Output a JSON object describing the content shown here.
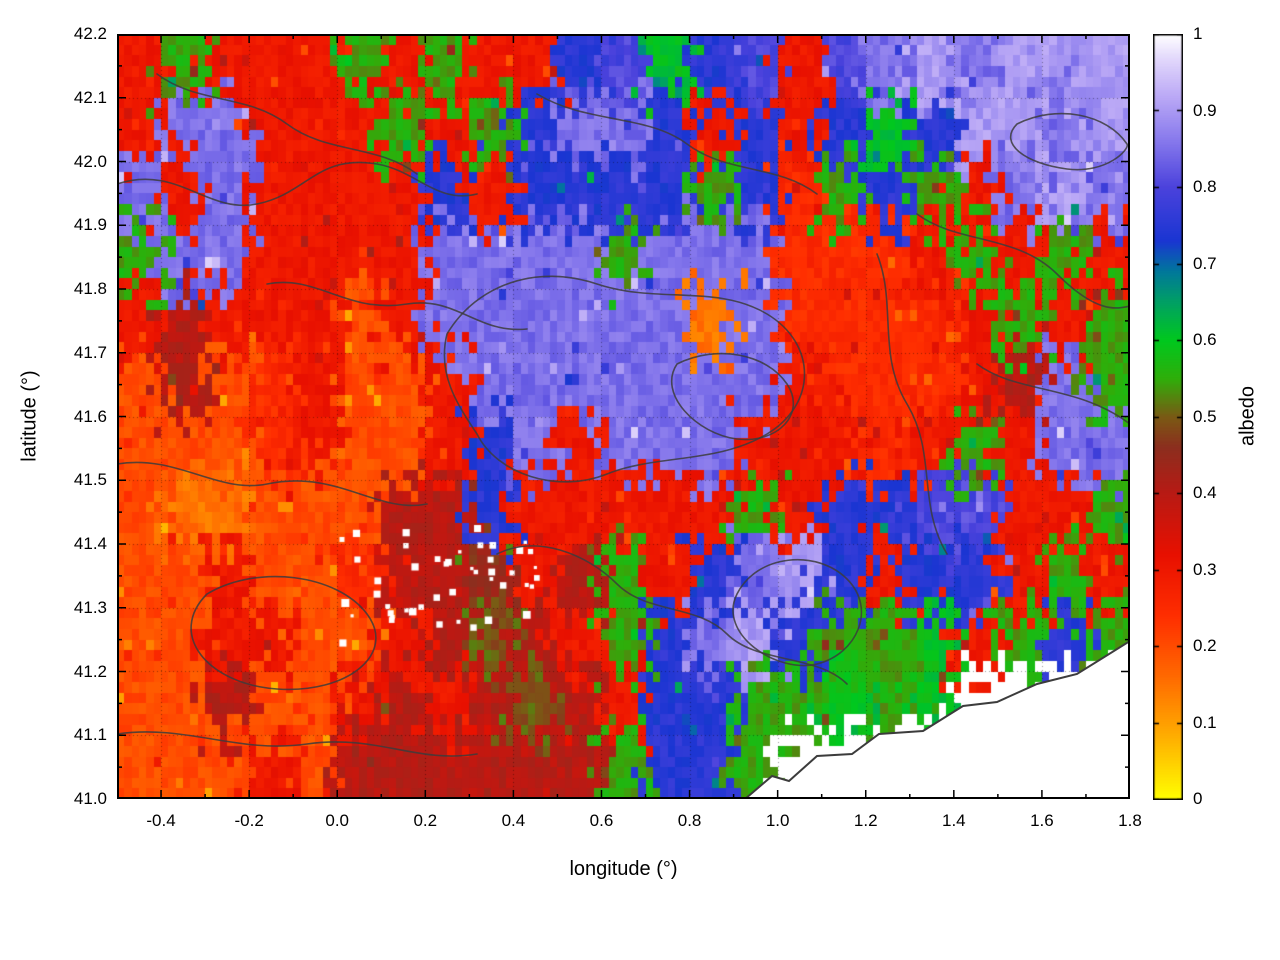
{
  "figure": {
    "background": "#ffffff"
  },
  "axes": {
    "x": {
      "label": "longitude (°)",
      "min": -0.5,
      "max": 1.8,
      "ticks": [
        {
          "v": -0.4,
          "label": "-0.4"
        },
        {
          "v": -0.2,
          "label": "-0.2"
        },
        {
          "v": 0.0,
          "label": "0.0"
        },
        {
          "v": 0.2,
          "label": "0.2"
        },
        {
          "v": 0.4,
          "label": "0.4"
        },
        {
          "v": 0.6,
          "label": "0.6"
        },
        {
          "v": 0.8,
          "label": "0.8"
        },
        {
          "v": 1.0,
          "label": "1.0"
        },
        {
          "v": 1.2,
          "label": "1.2"
        },
        {
          "v": 1.4,
          "label": "1.4"
        },
        {
          "v": 1.6,
          "label": "1.6"
        },
        {
          "v": 1.8,
          "label": "1.8"
        }
      ],
      "minor_step": 0.1
    },
    "y": {
      "label": "latitude (°)",
      "min": 41.0,
      "max": 42.2,
      "ticks": [
        {
          "v": 41.0,
          "label": "41.0"
        },
        {
          "v": 41.1,
          "label": "41.1"
        },
        {
          "v": 41.2,
          "label": "41.2"
        },
        {
          "v": 41.3,
          "label": "41.3"
        },
        {
          "v": 41.4,
          "label": "41.4"
        },
        {
          "v": 41.5,
          "label": "41.5"
        },
        {
          "v": 41.6,
          "label": "41.6"
        },
        {
          "v": 41.7,
          "label": "41.7"
        },
        {
          "v": 41.8,
          "label": "41.8"
        },
        {
          "v": 41.9,
          "label": "41.9"
        },
        {
          "v": 42.0,
          "label": "42.0"
        },
        {
          "v": 42.1,
          "label": "42.1"
        },
        {
          "v": 42.2,
          "label": "42.2"
        }
      ],
      "minor_step": 0.05
    },
    "grid_lines": "dotted at major ticks"
  },
  "colorbar": {
    "label": "albedo",
    "min": 0,
    "max": 1,
    "ticks": [
      {
        "v": 0.0,
        "label": "0"
      },
      {
        "v": 0.1,
        "label": "0.1"
      },
      {
        "v": 0.2,
        "label": "0.2"
      },
      {
        "v": 0.3,
        "label": "0.3"
      },
      {
        "v": 0.4,
        "label": "0.4"
      },
      {
        "v": 0.5,
        "label": "0.5"
      },
      {
        "v": 0.6,
        "label": "0.6"
      },
      {
        "v": 0.7,
        "label": "0.7"
      },
      {
        "v": 0.8,
        "label": "0.8"
      },
      {
        "v": 0.9,
        "label": "0.9"
      },
      {
        "v": 1.0,
        "label": "1"
      }
    ],
    "stops": [
      [
        0.0,
        "#ffff00"
      ],
      [
        0.08,
        "#ffb000"
      ],
      [
        0.16,
        "#ff6a00"
      ],
      [
        0.24,
        "#ff2e00"
      ],
      [
        0.32,
        "#e81000"
      ],
      [
        0.4,
        "#b81a14"
      ],
      [
        0.46,
        "#8c2e1e"
      ],
      [
        0.5,
        "#7a5a14"
      ],
      [
        0.55,
        "#2fae0a"
      ],
      [
        0.6,
        "#00c81e"
      ],
      [
        0.65,
        "#00a064"
      ],
      [
        0.69,
        "#00789b"
      ],
      [
        0.73,
        "#1a35d2"
      ],
      [
        0.8,
        "#4b42dc"
      ],
      [
        0.86,
        "#8678ec"
      ],
      [
        0.92,
        "#bcaaf6"
      ],
      [
        0.97,
        "#e4dafc"
      ],
      [
        1.0,
        "#ffffff"
      ]
    ]
  },
  "chart_data": {
    "type": "heatmap",
    "title": "",
    "xlabel": "longitude (°)",
    "ylabel": "latitude (°)",
    "value_label": "albedo",
    "value_range": [
      0,
      1
    ],
    "x_range": [
      -0.5,
      1.8
    ],
    "y_range": [
      41.0,
      42.2
    ],
    "grid_lon_start": -0.45,
    "grid_lon_step": 0.1,
    "grid_lat_start": 42.15,
    "grid_lat_step": -0.1,
    "no_data_color": "#ffffff",
    "values": [
      [
        0.3,
        0.55,
        0.3,
        0.3,
        0.3,
        0.55,
        0.3,
        0.55,
        0.3,
        0.3,
        0.75,
        0.8,
        0.6,
        0.75,
        0.8,
        0.3,
        0.8,
        0.85,
        0.9,
        0.85,
        0.9,
        0.9,
        0.9
      ],
      [
        0.3,
        0.85,
        0.85,
        0.3,
        0.3,
        0.3,
        0.55,
        0.3,
        0.55,
        0.75,
        0.85,
        0.85,
        0.75,
        0.3,
        0.75,
        0.3,
        0.75,
        0.6,
        0.75,
        0.9,
        0.9,
        0.85,
        0.9
      ],
      [
        0.85,
        0.3,
        0.85,
        0.3,
        0.3,
        0.3,
        0.3,
        0.75,
        0.3,
        0.75,
        0.75,
        0.75,
        0.75,
        0.55,
        0.75,
        0.25,
        0.55,
        0.75,
        0.55,
        0.3,
        0.85,
        0.9,
        0.85
      ],
      [
        0.55,
        0.85,
        0.85,
        0.3,
        0.3,
        0.3,
        0.3,
        0.85,
        0.85,
        0.85,
        0.85,
        0.55,
        0.85,
        0.85,
        0.85,
        0.25,
        0.25,
        0.25,
        0.3,
        0.55,
        0.3,
        0.55,
        0.3
      ],
      [
        0.3,
        0.4,
        0.3,
        0.3,
        0.3,
        0.2,
        0.3,
        0.85,
        0.85,
        0.85,
        0.85,
        0.85,
        0.85,
        0.15,
        0.85,
        0.25,
        0.25,
        0.25,
        0.25,
        0.3,
        0.55,
        0.3,
        0.55
      ],
      [
        0.2,
        0.4,
        0.2,
        0.25,
        0.3,
        0.2,
        0.2,
        0.3,
        0.85,
        0.85,
        0.85,
        0.85,
        0.85,
        0.85,
        0.85,
        0.3,
        0.25,
        0.25,
        0.25,
        0.3,
        0.4,
        0.85,
        0.55
      ],
      [
        0.2,
        0.2,
        0.2,
        0.25,
        0.3,
        0.2,
        0.2,
        0.3,
        0.75,
        0.85,
        0.3,
        0.85,
        0.85,
        0.85,
        0.3,
        0.3,
        0.3,
        0.25,
        0.3,
        0.55,
        0.3,
        0.85,
        0.85
      ],
      [
        0.2,
        0.15,
        0.15,
        0.2,
        0.2,
        0.2,
        0.4,
        0.4,
        0.75,
        0.3,
        0.3,
        0.3,
        0.3,
        0.3,
        0.55,
        0.3,
        0.75,
        0.75,
        0.8,
        0.8,
        0.3,
        0.3,
        0.55
      ],
      [
        0.2,
        0.2,
        0.3,
        0.2,
        0.2,
        0.25,
        0.4,
        0.4,
        0.45,
        0.3,
        0.4,
        0.55,
        0.3,
        0.75,
        0.85,
        0.9,
        0.75,
        0.3,
        0.75,
        0.75,
        0.3,
        0.55,
        0.3
      ],
      [
        0.2,
        0.2,
        0.3,
        0.3,
        0.2,
        0.2,
        0.3,
        0.4,
        0.5,
        0.4,
        0.3,
        0.55,
        0.75,
        0.85,
        0.9,
        0.75,
        0.55,
        0.55,
        0.6,
        0.3,
        0.55,
        0.75,
        0.55
      ],
      [
        0.2,
        0.2,
        0.4,
        0.2,
        0.2,
        0.3,
        0.4,
        0.3,
        0.4,
        0.5,
        0.4,
        0.3,
        0.75,
        0.75,
        0.55,
        0.55,
        0.6,
        0.55,
        0.6,
        null,
        null,
        null,
        null
      ],
      [
        0.2,
        0.2,
        0.2,
        0.3,
        0.2,
        0.4,
        0.4,
        0.4,
        0.4,
        0.4,
        0.4,
        0.55,
        0.75,
        0.75,
        0.55,
        null,
        null,
        null,
        null,
        null,
        null,
        null,
        null
      ]
    ],
    "white_specks_region": {
      "lon": [
        0.0,
        0.45
      ],
      "lat": [
        41.25,
        41.43
      ]
    },
    "overlays": [
      "terrain contour lines (unlabeled, dark gray)",
      "coastline in bottom-right corner, sea shown white"
    ]
  }
}
